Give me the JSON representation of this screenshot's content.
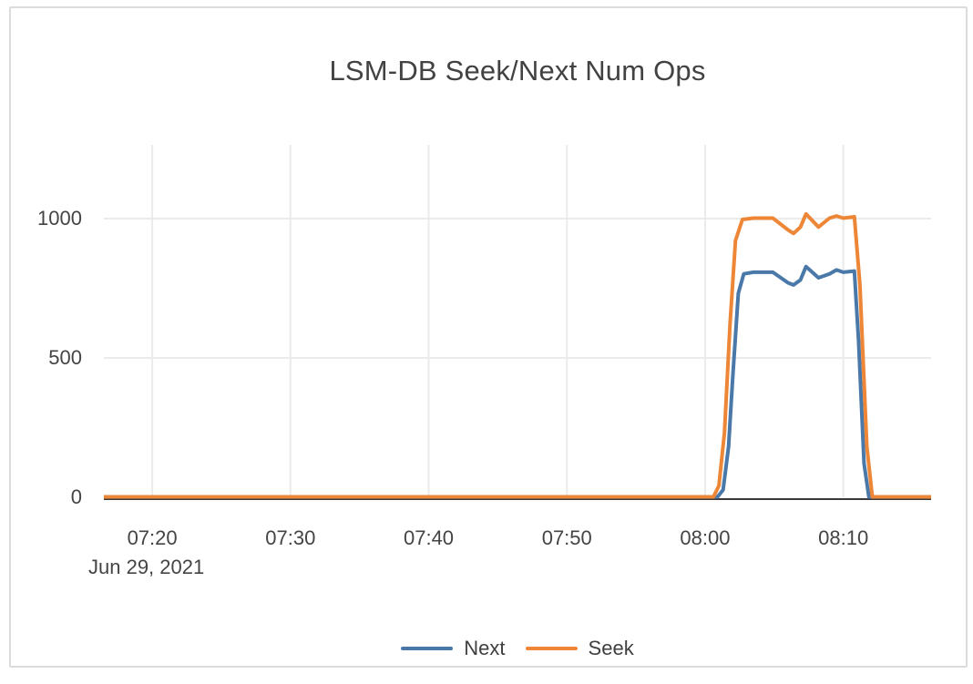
{
  "card": {
    "title": "LSM-DB Seek/Next Num Ops"
  },
  "colors": {
    "card_border": "#dcdcdc",
    "grid_line": "#ebebeb",
    "zero_line": "#3a3a3a",
    "axis_text": "#444444",
    "title_text": "#424242",
    "series_next": "#4a78a8",
    "series_seek": "#ee8637"
  },
  "chart_data": {
    "type": "line",
    "title": "LSM-DB Seek/Next Num Ops",
    "x_axis": {
      "date_label": "Jun 29, 2021",
      "tick_labels": [
        "07:20",
        "07:30",
        "07:40",
        "07:50",
        "08:00",
        "08:10"
      ],
      "tick_minutes": [
        20,
        30,
        40,
        50,
        60,
        70
      ],
      "range_minutes": [
        16.5,
        76.35
      ],
      "unit": "time of day HH:MM on Jun 29, 2021 (minutes since 07:00 in point data)"
    },
    "y_axis": {
      "tick_labels": [
        "0",
        "500",
        "1000"
      ],
      "tick_values": [
        0,
        500,
        1000
      ],
      "range": [
        0,
        1265
      ]
    },
    "grid": true,
    "legend": {
      "position": "bottom-center",
      "entries": [
        "Next",
        "Seek"
      ]
    },
    "series": [
      {
        "name": "Next",
        "color": "#4a78a8",
        "points": [
          [
            16.5,
            0
          ],
          [
            60.9,
            0
          ],
          [
            61.3,
            25
          ],
          [
            61.7,
            180
          ],
          [
            62.0,
            430
          ],
          [
            62.4,
            730
          ],
          [
            62.8,
            800
          ],
          [
            63.5,
            806
          ],
          [
            64.9,
            806
          ],
          [
            66.0,
            768
          ],
          [
            66.4,
            760
          ],
          [
            66.9,
            778
          ],
          [
            67.3,
            826
          ],
          [
            68.2,
            786
          ],
          [
            69.0,
            800
          ],
          [
            69.5,
            814
          ],
          [
            70.0,
            806
          ],
          [
            70.8,
            810
          ],
          [
            71.1,
            560
          ],
          [
            71.5,
            120
          ],
          [
            71.85,
            0
          ],
          [
            76.35,
            0
          ]
        ]
      },
      {
        "name": "Seek",
        "color": "#ee8637",
        "points": [
          [
            16.5,
            0
          ],
          [
            60.6,
            0
          ],
          [
            61.0,
            40
          ],
          [
            61.4,
            230
          ],
          [
            61.8,
            620
          ],
          [
            62.2,
            920
          ],
          [
            62.7,
            995
          ],
          [
            63.5,
            1000
          ],
          [
            64.9,
            1000
          ],
          [
            66.0,
            958
          ],
          [
            66.4,
            945
          ],
          [
            66.9,
            968
          ],
          [
            67.3,
            1015
          ],
          [
            68.2,
            968
          ],
          [
            69.0,
            1000
          ],
          [
            69.5,
            1008
          ],
          [
            70.0,
            1000
          ],
          [
            70.8,
            1005
          ],
          [
            71.2,
            760
          ],
          [
            71.7,
            180
          ],
          [
            72.1,
            0
          ],
          [
            76.35,
            0
          ]
        ]
      }
    ]
  }
}
